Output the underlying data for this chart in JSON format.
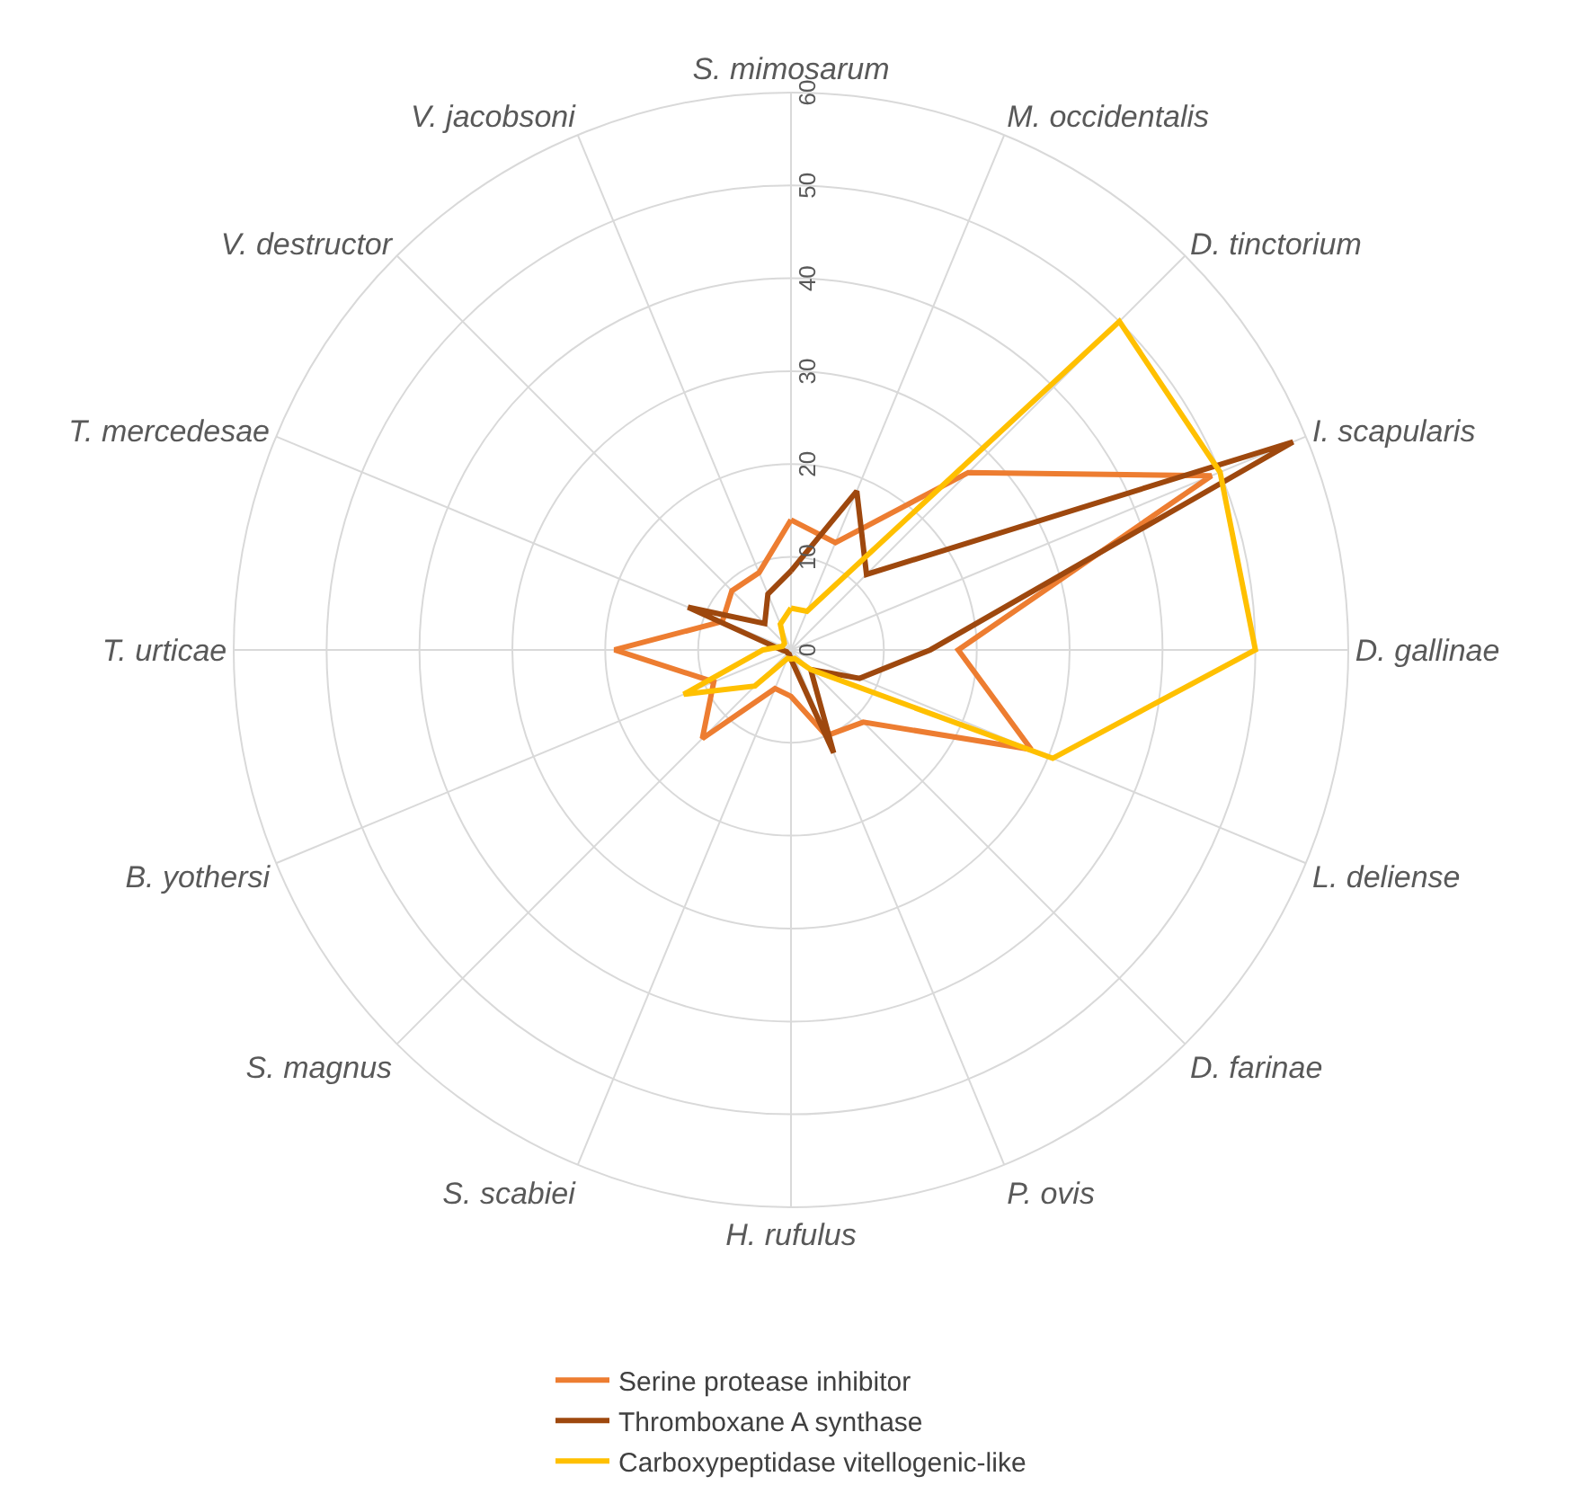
{
  "chart_data": {
    "type": "radar",
    "categories": [
      "S. mimosarum",
      "M. occidentalis",
      "D. tinctorium",
      "I. scapularis",
      "D. gallinae",
      "L. deliense",
      "D. farinae",
      "P. ovis",
      "H. rufulus",
      "S. scabiei",
      "S. magnus",
      "B. yothersi",
      "T. urticae",
      "T. mercedesae",
      "V. destructor",
      "V. jacobsoni"
    ],
    "series": [
      {
        "name": "Serine protease inhibitor",
        "color": "#ed7d31",
        "values": [
          14,
          12.5,
          27,
          49,
          18,
          28,
          11,
          10,
          5,
          4.5,
          13.5,
          9,
          19,
          8,
          9,
          9
        ]
      },
      {
        "name": "Thromboxane A synthase",
        "color": "#9e480e",
        "values": [
          8.5,
          18.5,
          11.5,
          58.5,
          15,
          8,
          3,
          12,
          1,
          0.5,
          0.5,
          0.5,
          1,
          12,
          4,
          6.5
        ]
      },
      {
        "name": "Carboxypeptidase vitellogenic-like",
        "color": "#ffc000",
        "values": [
          4.5,
          4.5,
          50,
          50,
          50,
          30.5,
          3,
          1,
          1,
          1,
          5.5,
          12.5,
          3,
          1,
          1,
          3
        ]
      }
    ],
    "ylim": [
      0,
      60
    ],
    "yticks": [
      0,
      10,
      20,
      30,
      40,
      50,
      60
    ],
    "grid": true,
    "legend": "bottom",
    "marker": "none",
    "line_style": "solid"
  }
}
